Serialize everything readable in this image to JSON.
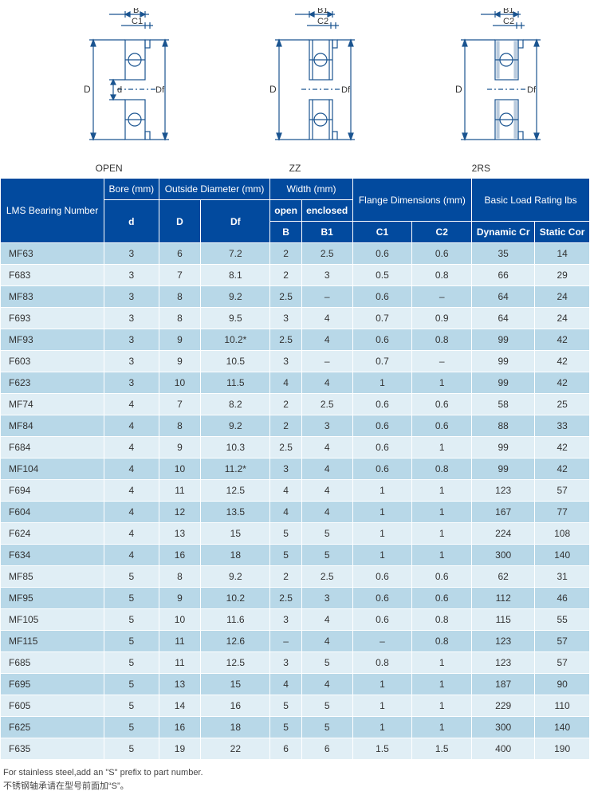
{
  "diagrams": {
    "stroke_color": "#1a5490",
    "labels": {
      "open": "OPEN",
      "zz": "ZZ",
      "rs": "2RS"
    },
    "dims": {
      "B": "B",
      "C1": "C1",
      "B1": "B1",
      "C2": "C2",
      "D": "D",
      "d": "d",
      "Df": "Df"
    }
  },
  "table": {
    "headers": {
      "lms": "LMS Bearing Number",
      "bore": "Bore (mm)",
      "od": "Outside Diameter (mm)",
      "width": "Width (mm)",
      "width_open": "open",
      "width_enclosed": "enclosed",
      "flange": "Flange Dimensions (mm)",
      "load": "Basic Load Rating lbs",
      "d": "d",
      "D": "D",
      "Df": "Df",
      "B": "B",
      "B1": "B1",
      "C1": "C1",
      "C2": "C2",
      "dynamic": "Dynamic Cr",
      "static": "Static Cor"
    },
    "rows": [
      [
        "MF63",
        "3",
        "6",
        "7.2",
        "2",
        "2.5",
        "0.6",
        "0.6",
        "35",
        "14"
      ],
      [
        "F683",
        "3",
        "7",
        "8.1",
        "2",
        "3",
        "0.5",
        "0.8",
        "66",
        "29"
      ],
      [
        "MF83",
        "3",
        "8",
        "9.2",
        "2.5",
        "–",
        "0.6",
        "–",
        "64",
        "24"
      ],
      [
        "F693",
        "3",
        "8",
        "9.5",
        "3",
        "4",
        "0.7",
        "0.9",
        "64",
        "24"
      ],
      [
        "MF93",
        "3",
        "9",
        "10.2*",
        "2.5",
        "4",
        "0.6",
        "0.8",
        "99",
        "42"
      ],
      [
        "F603",
        "3",
        "9",
        "10.5",
        "3",
        "–",
        "0.7",
        "–",
        "99",
        "42"
      ],
      [
        "F623",
        "3",
        "10",
        "11.5",
        "4",
        "4",
        "1",
        "1",
        "99",
        "42"
      ],
      [
        "MF74",
        "4",
        "7",
        "8.2",
        "2",
        "2.5",
        "0.6",
        "0.6",
        "58",
        "25"
      ],
      [
        "MF84",
        "4",
        "8",
        "9.2",
        "2",
        "3",
        "0.6",
        "0.6",
        "88",
        "33"
      ],
      [
        "F684",
        "4",
        "9",
        "10.3",
        "2.5",
        "4",
        "0.6",
        "1",
        "99",
        "42"
      ],
      [
        "MF104",
        "4",
        "10",
        "11.2*",
        "3",
        "4",
        "0.6",
        "0.8",
        "99",
        "42"
      ],
      [
        "F694",
        "4",
        "11",
        "12.5",
        "4",
        "4",
        "1",
        "1",
        "123",
        "57"
      ],
      [
        "F604",
        "4",
        "12",
        "13.5",
        "4",
        "4",
        "1",
        "1",
        "167",
        "77"
      ],
      [
        "F624",
        "4",
        "13",
        "15",
        "5",
        "5",
        "1",
        "1",
        "224",
        "108"
      ],
      [
        "F634",
        "4",
        "16",
        "18",
        "5",
        "5",
        "1",
        "1",
        "300",
        "140"
      ],
      [
        "MF85",
        "5",
        "8",
        "9.2",
        "2",
        "2.5",
        "0.6",
        "0.6",
        "62",
        "31"
      ],
      [
        "MF95",
        "5",
        "9",
        "10.2",
        "2.5",
        "3",
        "0.6",
        "0.6",
        "112",
        "46"
      ],
      [
        "MF105",
        "5",
        "10",
        "11.6",
        "3",
        "4",
        "0.6",
        "0.8",
        "115",
        "55"
      ],
      [
        "MF115",
        "5",
        "11",
        "12.6",
        "–",
        "4",
        "–",
        "0.8",
        "123",
        "57"
      ],
      [
        "F685",
        "5",
        "11",
        "12.5",
        "3",
        "5",
        "0.8",
        "1",
        "123",
        "57"
      ],
      [
        "F695",
        "5",
        "13",
        "15",
        "4",
        "4",
        "1",
        "1",
        "187",
        "90"
      ],
      [
        "F605",
        "5",
        "14",
        "16",
        "5",
        "5",
        "1",
        "1",
        "229",
        "110"
      ],
      [
        "F625",
        "5",
        "16",
        "18",
        "5",
        "5",
        "1",
        "1",
        "300",
        "140"
      ],
      [
        "F635",
        "5",
        "19",
        "22",
        "6",
        "6",
        "1.5",
        "1.5",
        "400",
        "190"
      ]
    ]
  },
  "footnote": {
    "line1": "For stainless steel,add an \"S\" prefix to part number.",
    "line2": "不锈钢轴承请在型号前面加“S”。"
  }
}
